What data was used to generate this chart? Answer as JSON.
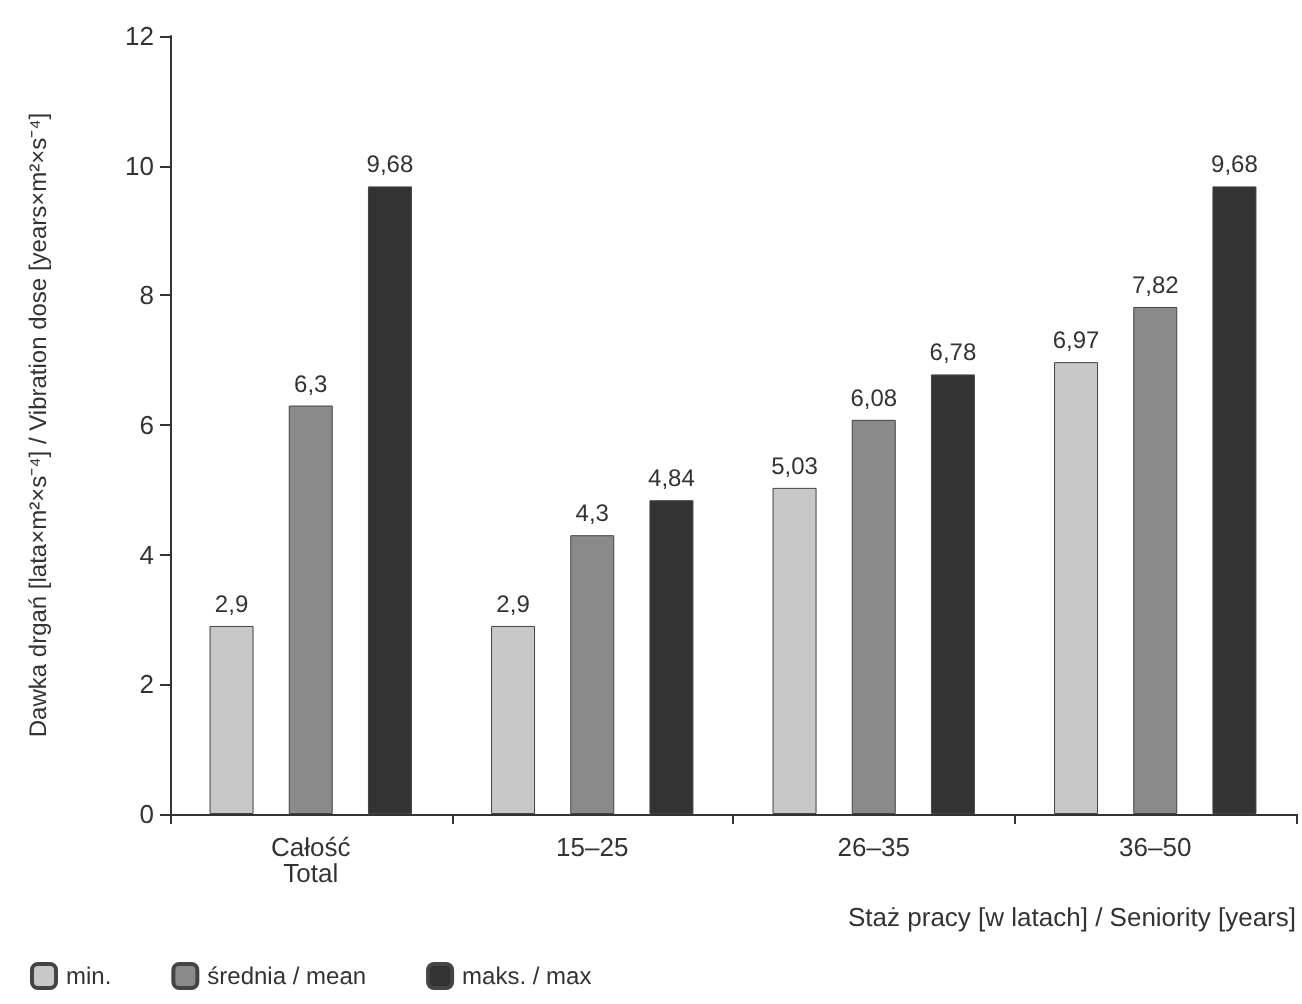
{
  "chart_data": {
    "type": "bar",
    "ylabel": "Dawka drgań [lata×m²×s⁻⁴] / Vibration dose [years×m²×s⁻⁴]",
    "xlabel": "Staż pracy [w latach] / Seniority [years]",
    "categories": [
      "Całość\nTotal",
      "15–25",
      "26–35",
      "36–50"
    ],
    "series": [
      {
        "name": "min.",
        "color": "#c8c8c8",
        "values": [
          2.9,
          2.9,
          5.03,
          6.97
        ],
        "value_labels": [
          "2,9",
          "2,9",
          "5,03",
          "6,97"
        ]
      },
      {
        "name": "średnia / mean",
        "color": "#8a8a8a",
        "values": [
          6.3,
          4.3,
          6.08,
          7.82
        ],
        "value_labels": [
          "6,3",
          "4,3",
          "6,08",
          "7,82"
        ]
      },
      {
        "name": "maks. / max",
        "color": "#333333",
        "values": [
          9.68,
          4.84,
          6.78,
          9.68
        ],
        "value_labels": [
          "9,68",
          "4,84",
          "6,78",
          "9,68"
        ]
      }
    ],
    "ylim": [
      0,
      12
    ],
    "yticks": [
      0,
      2,
      4,
      6,
      8,
      10,
      12
    ],
    "grid": false,
    "legend": "bottom left"
  }
}
